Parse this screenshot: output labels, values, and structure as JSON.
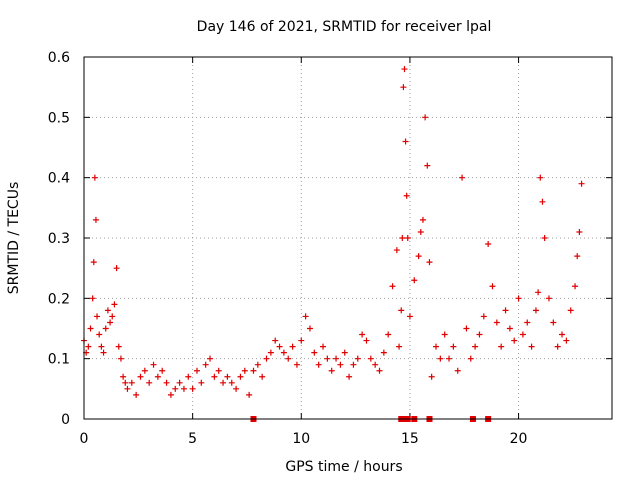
{
  "colors": {
    "series": "#e00000",
    "axis": "#000000",
    "grid": "#a0a0a0"
  },
  "chart_data": {
    "type": "scatter",
    "title": "Day 146 of 2021, SRMTID for receiver lpal",
    "xlabel": "GPS time / hours",
    "ylabel": "SRMTID / TECUs",
    "xlim": [
      0,
      24.3
    ],
    "ylim": [
      0,
      0.6
    ],
    "xticks": [
      0,
      5,
      10,
      15,
      20
    ],
    "xtick_labels": [
      "0",
      "5",
      "10",
      "15",
      "20"
    ],
    "yticks": [
      0,
      0.1,
      0.2,
      0.3,
      0.4,
      0.5,
      0.6
    ],
    "ytick_labels": [
      "0",
      "0.1",
      "0.2",
      "0.3",
      "0.4",
      "0.5",
      "0.6"
    ],
    "grid": true,
    "marker": "+",
    "series": [
      {
        "name": "SRMTID",
        "color": "#e00000",
        "x": [
          0.0,
          0.1,
          0.2,
          0.3,
          0.4,
          0.45,
          0.5,
          0.55,
          0.6,
          0.7,
          0.8,
          0.9,
          1.0,
          1.1,
          1.2,
          1.3,
          1.4,
          1.5,
          1.6,
          1.7,
          1.8,
          1.9,
          2.0,
          2.2,
          2.4,
          2.6,
          2.8,
          3.0,
          3.2,
          3.4,
          3.6,
          3.8,
          4.0,
          4.2,
          4.4,
          4.6,
          4.8,
          5.0,
          5.2,
          5.4,
          5.6,
          5.8,
          6.0,
          6.2,
          6.4,
          6.6,
          6.8,
          7.0,
          7.2,
          7.4,
          7.6,
          7.8,
          8.0,
          8.2,
          8.4,
          8.6,
          8.8,
          9.0,
          9.2,
          9.4,
          9.6,
          9.8,
          10.0,
          10.2,
          10.4,
          10.6,
          10.8,
          11.0,
          11.2,
          11.4,
          11.6,
          11.8,
          12.0,
          12.2,
          12.4,
          12.6,
          12.8,
          13.0,
          13.2,
          13.4,
          13.6,
          13.8,
          14.0,
          14.2,
          14.4,
          14.5,
          14.6,
          14.65,
          14.7,
          14.75,
          14.8,
          14.85,
          14.9,
          15.0,
          15.2,
          15.4,
          15.5,
          15.6,
          15.7,
          15.8,
          15.9,
          16.0,
          16.2,
          16.4,
          16.6,
          16.8,
          17.0,
          17.2,
          17.4,
          17.6,
          17.8,
          18.0,
          18.2,
          18.4,
          18.6,
          18.8,
          19.0,
          19.2,
          19.4,
          19.6,
          19.8,
          20.0,
          20.2,
          20.4,
          20.6,
          20.8,
          20.9,
          21.0,
          21.1,
          21.2,
          21.4,
          21.6,
          21.8,
          22.0,
          22.2,
          22.4,
          22.6,
          22.7,
          22.8,
          22.9
        ],
        "y": [
          0.13,
          0.11,
          0.12,
          0.15,
          0.2,
          0.26,
          0.4,
          0.33,
          0.17,
          0.14,
          0.12,
          0.11,
          0.15,
          0.18,
          0.16,
          0.17,
          0.19,
          0.25,
          0.12,
          0.1,
          0.07,
          0.06,
          0.05,
          0.06,
          0.04,
          0.07,
          0.08,
          0.06,
          0.09,
          0.07,
          0.08,
          0.06,
          0.04,
          0.05,
          0.06,
          0.05,
          0.07,
          0.05,
          0.08,
          0.06,
          0.09,
          0.1,
          0.07,
          0.08,
          0.06,
          0.07,
          0.06,
          0.05,
          0.07,
          0.08,
          0.04,
          0.08,
          0.09,
          0.07,
          0.1,
          0.11,
          0.13,
          0.12,
          0.11,
          0.1,
          0.12,
          0.09,
          0.13,
          0.17,
          0.15,
          0.11,
          0.09,
          0.12,
          0.1,
          0.08,
          0.1,
          0.09,
          0.11,
          0.07,
          0.09,
          0.1,
          0.14,
          0.13,
          0.1,
          0.09,
          0.08,
          0.11,
          0.14,
          0.22,
          0.28,
          0.12,
          0.18,
          0.3,
          0.55,
          0.58,
          0.46,
          0.37,
          0.3,
          0.17,
          0.23,
          0.27,
          0.31,
          0.33,
          0.5,
          0.42,
          0.26,
          0.07,
          0.12,
          0.1,
          0.14,
          0.1,
          0.12,
          0.08,
          0.4,
          0.15,
          0.1,
          0.12,
          0.14,
          0.17,
          0.29,
          0.22,
          0.16,
          0.12,
          0.18,
          0.15,
          0.13,
          0.2,
          0.14,
          0.16,
          0.12,
          0.18,
          0.21,
          0.4,
          0.36,
          0.3,
          0.2,
          0.16,
          0.12,
          0.14,
          0.13,
          0.18,
          0.22,
          0.27,
          0.31,
          0.39
        ]
      }
    ],
    "flags_x": [
      7.8,
      14.6,
      14.75,
      14.9,
      15.2,
      15.9,
      17.9,
      18.6
    ]
  }
}
